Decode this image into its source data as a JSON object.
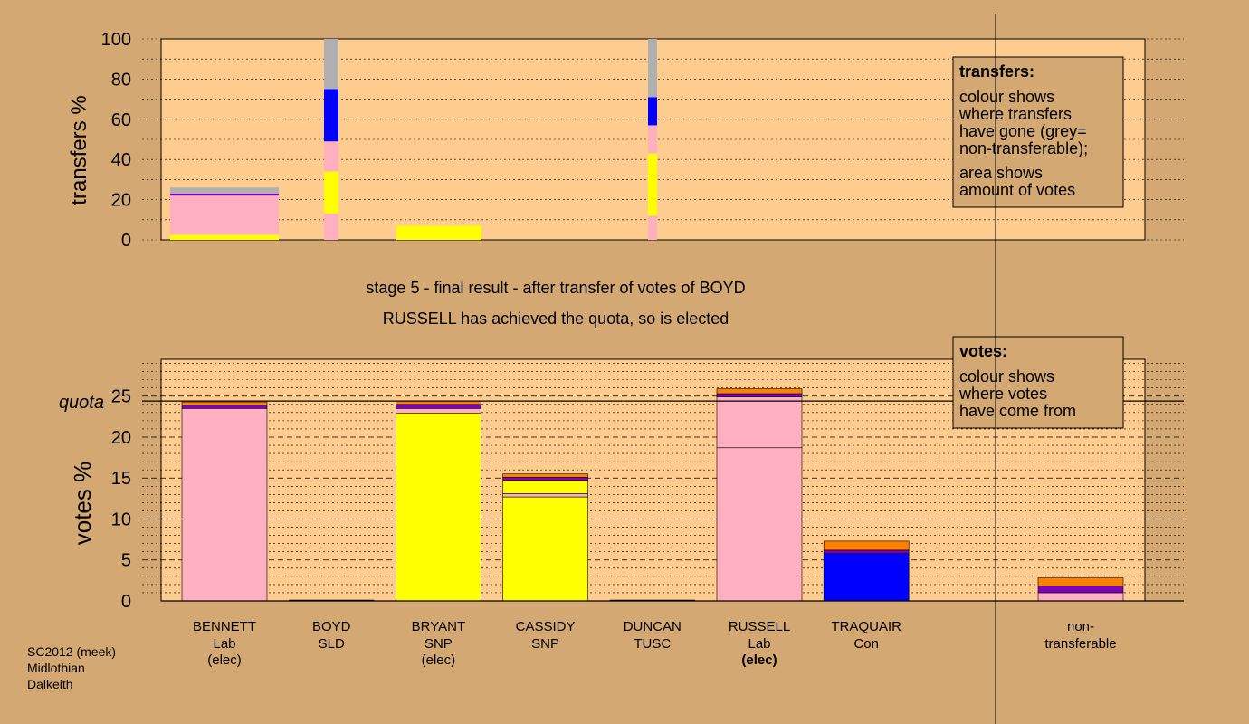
{
  "colors": {
    "background": "#d4a873",
    "plot_background": "#ffcc8f",
    "lab": "#ffb0c0",
    "snp": "#ffff00",
    "con": "#0000ff",
    "sld": "#8000c0",
    "tusc": "#ff8000",
    "nontransferable": "#b0b0b0"
  },
  "status": {
    "stage_line": "stage 5 - final result - after transfer of votes of BOYD",
    "elected_line": "RUSSELL has achieved the quota, so is elected"
  },
  "footer": {
    "line1": "SC2012 (meek)",
    "line2": "Midlothian",
    "line3": "Dalkeith"
  },
  "legends": {
    "transfers": {
      "title": "transfers:",
      "lines": [
        "colour shows",
        "where transfers",
        "have gone (grey=",
        "non-transferable);",
        "area shows",
        "amount of votes"
      ]
    },
    "votes": {
      "title": "votes:",
      "lines": [
        "colour shows",
        "where votes",
        "have come from"
      ]
    }
  },
  "chart_data": [
    {
      "type": "bar",
      "ylabel": "transfers %",
      "ylim": [
        0,
        100
      ],
      "yticks": [
        "0",
        "20",
        "40",
        "60",
        "80",
        "100"
      ],
      "bars": [
        {
          "segments": [
            {
              "color": "snp",
              "from": 0,
              "to": 2.5
            },
            {
              "color": "lab",
              "from": 2.5,
              "to": 22
            },
            {
              "color": "sld",
              "from": 22,
              "to": 23
            },
            {
              "color": "nontransferable",
              "from": 23,
              "to": 26
            }
          ]
        },
        {
          "segments": [
            {
              "color": "lab",
              "from": 0,
              "to": 13
            },
            {
              "color": "snp",
              "from": 13,
              "to": 34
            },
            {
              "color": "lab",
              "from": 34,
              "to": 49
            },
            {
              "color": "con",
              "from": 49,
              "to": 75
            },
            {
              "color": "nontransferable",
              "from": 75,
              "to": 100
            }
          ]
        },
        {
          "segments": [
            {
              "color": "snp",
              "from": 0,
              "to": 7
            }
          ]
        },
        {
          "segments": [
            {
              "color": "lab",
              "from": 0,
              "to": 12
            },
            {
              "color": "snp",
              "from": 12,
              "to": 43
            },
            {
              "color": "lab",
              "from": 43,
              "to": 57
            },
            {
              "color": "con",
              "from": 57,
              "to": 71
            },
            {
              "color": "nontransferable",
              "from": 71,
              "to": 100
            }
          ]
        }
      ]
    },
    {
      "type": "bar",
      "ylabel": "votes %",
      "ylim": [
        0,
        29.5
      ],
      "yticks": [
        "0",
        "5",
        "10",
        "15",
        "20",
        "25"
      ],
      "quota": 24.4,
      "quota_label": "quota",
      "categories": [
        {
          "name": "BENNETT",
          "party": "Lab",
          "status": "(elec)",
          "status_bold": false
        },
        {
          "name": "BOYD",
          "party": "SLD",
          "status": "",
          "status_bold": false
        },
        {
          "name": "BRYANT",
          "party": "SNP",
          "status": "(elec)",
          "status_bold": false
        },
        {
          "name": "CASSIDY",
          "party": "SNP",
          "status": "",
          "status_bold": false
        },
        {
          "name": "DUNCAN",
          "party": "TUSC",
          "status": "",
          "status_bold": false
        },
        {
          "name": "RUSSELL",
          "party": "Lab",
          "status": "(elec)",
          "status_bold": true
        },
        {
          "name": "TRAQUAIR",
          "party": "Con",
          "status": "",
          "status_bold": false
        }
      ],
      "nontransferable_label": [
        "non-",
        "transferable"
      ],
      "stacks": [
        [
          {
            "color": "lab",
            "v": 23.5
          },
          {
            "color": "sld",
            "v": 0.4
          },
          {
            "color": "tusc",
            "v": 0.4
          }
        ],
        [],
        [
          {
            "color": "snp",
            "v": 22.9
          },
          {
            "color": "lab",
            "v": 0.6
          },
          {
            "color": "sld",
            "v": 0.5
          },
          {
            "color": "tusc",
            "v": 0.4
          }
        ],
        [
          {
            "color": "snp",
            "v": 12.7
          },
          {
            "color": "lab",
            "v": 0.4
          },
          {
            "color": "snp",
            "v": 1.6
          },
          {
            "color": "sld",
            "v": 0.4
          },
          {
            "color": "tusc",
            "v": 0.4
          }
        ],
        [],
        [
          {
            "color": "lab",
            "v": 18.7
          },
          {
            "color": "lab",
            "v": 6.2
          },
          {
            "color": "sld",
            "v": 0.4
          },
          {
            "color": "tusc",
            "v": 0.6
          }
        ],
        [
          {
            "color": "con",
            "v": 5.8
          },
          {
            "color": "sld",
            "v": 0.4
          },
          {
            "color": "tusc",
            "v": 1.1
          }
        ]
      ],
      "nontransferable_stack": [
        {
          "color": "lab",
          "v": 1.0
        },
        {
          "color": "sld",
          "v": 0.8
        },
        {
          "color": "tusc",
          "v": 1.0
        }
      ]
    }
  ]
}
